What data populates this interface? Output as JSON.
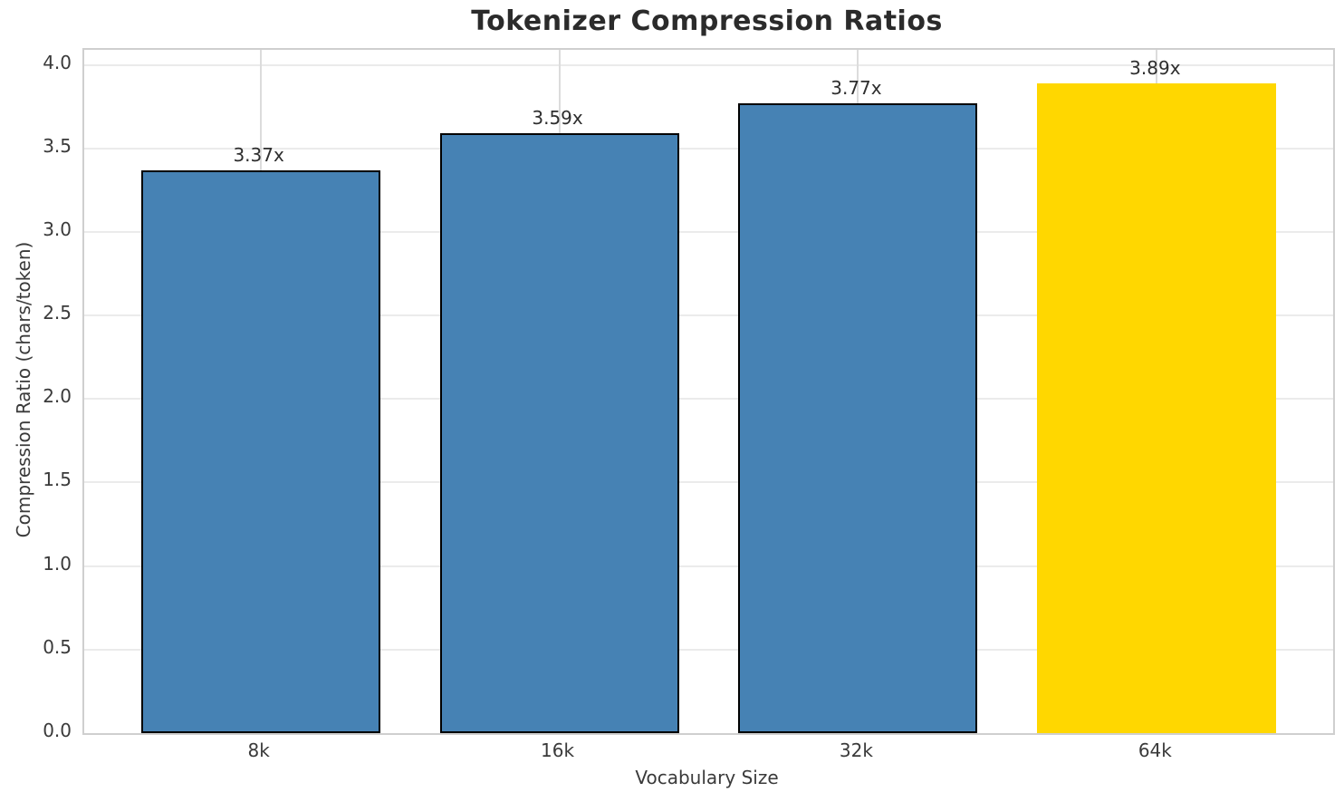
{
  "chart_data": {
    "type": "bar",
    "title": "Tokenizer Compression Ratios",
    "xlabel": "Vocabulary Size",
    "ylabel": "Compression Ratio (chars/token)",
    "categories": [
      "8k",
      "16k",
      "32k",
      "64k"
    ],
    "values": [
      3.37,
      3.59,
      3.77,
      3.89
    ],
    "bar_labels": [
      "3.37x",
      "3.59x",
      "3.77x",
      "3.89x"
    ],
    "bar_colors": [
      "#4682B4",
      "#4682B4",
      "#4682B4",
      "#FFD700"
    ],
    "bar_edge_colors": [
      "#000000",
      "#000000",
      "#000000",
      "none"
    ],
    "highlight_category": "64k",
    "bar_width": 0.8,
    "xlim": [
      -0.59,
      3.59
    ],
    "ylim": [
      0,
      4.09
    ],
    "yticks": [
      0.0,
      0.5,
      1.0,
      1.5,
      2.0,
      2.5,
      3.0,
      3.5,
      4.0
    ],
    "ytick_labels": [
      "0.0",
      "0.5",
      "1.0",
      "1.5",
      "2.0",
      "2.5",
      "3.0",
      "3.5",
      "4.0"
    ],
    "grid": true,
    "legend": "none",
    "colors": {
      "bar_default": "#4682B4",
      "bar_highlight": "#FFD700",
      "bar_edge": "#000000",
      "grid_horizontal": "#ebebeb",
      "grid_vertical": "#dcdcdc",
      "spine": "#cfcfcf",
      "text": "#2e2e2e",
      "background": "#ffffff"
    }
  }
}
